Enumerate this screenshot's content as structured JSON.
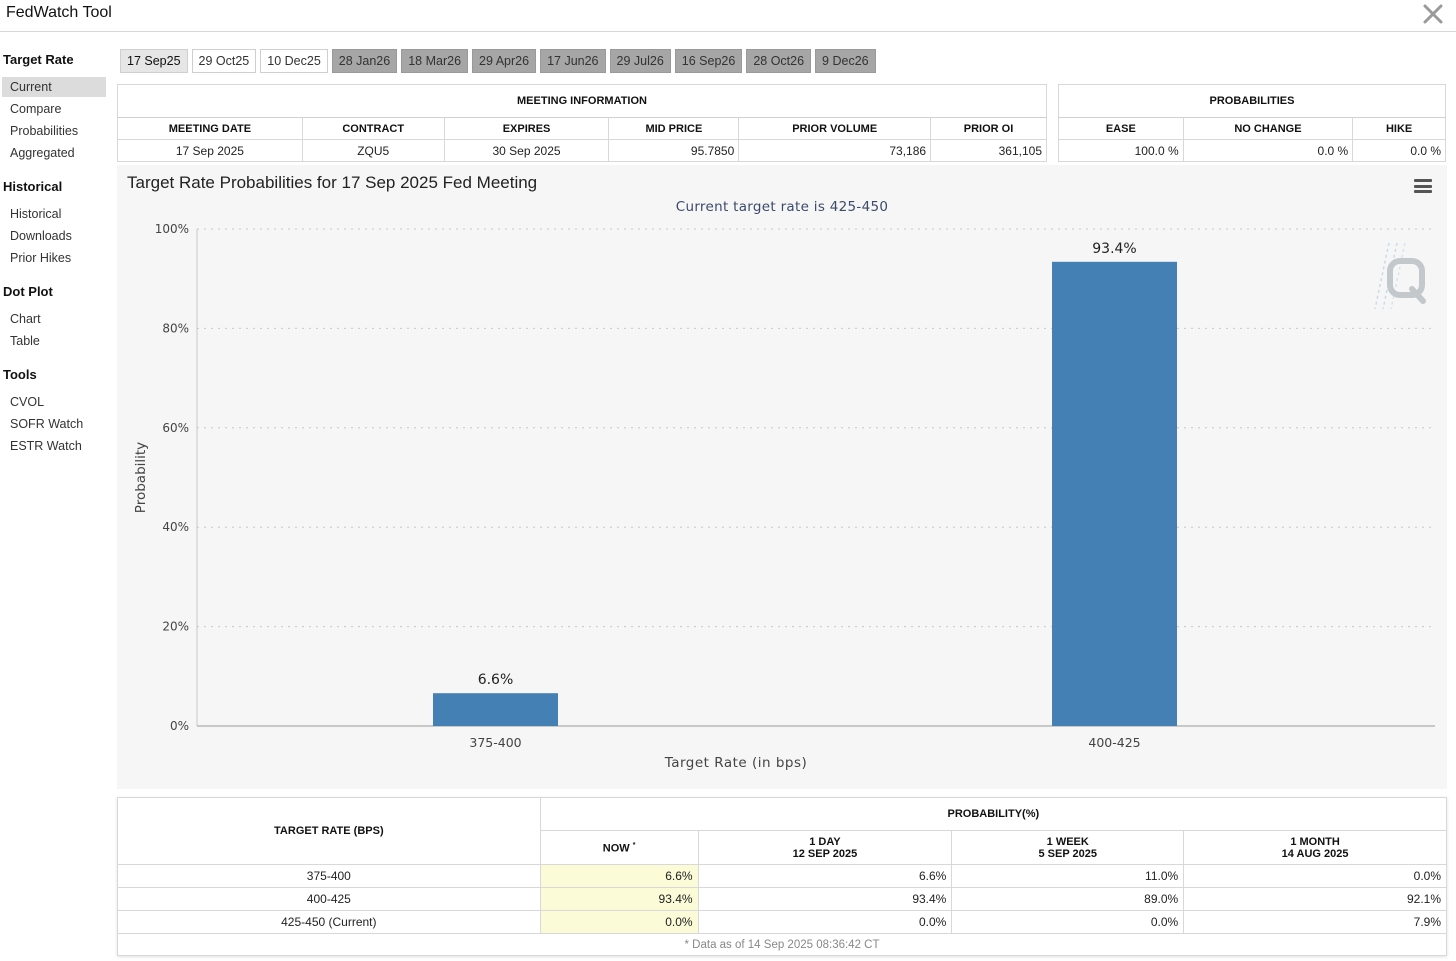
{
  "app": {
    "title": "FedWatch Tool"
  },
  "sidebar": {
    "groups": [
      {
        "label": "Target Rate",
        "items": [
          {
            "label": "Current"
          },
          {
            "label": "Compare"
          },
          {
            "label": "Probabilities"
          },
          {
            "label": "Aggregated"
          }
        ]
      },
      {
        "label": "Historical",
        "items": [
          {
            "label": "Historical"
          },
          {
            "label": "Downloads"
          },
          {
            "label": "Prior Hikes"
          }
        ]
      },
      {
        "label": "Dot Plot",
        "items": [
          {
            "label": "Chart"
          },
          {
            "label": "Table"
          }
        ]
      },
      {
        "label": "Tools",
        "items": [
          {
            "label": "CVOL"
          },
          {
            "label": "SOFR Watch"
          },
          {
            "label": "ESTR Watch"
          }
        ]
      }
    ]
  },
  "tabs": [
    "17 Sep25",
    "29 Oct25",
    "10 Dec25",
    "28 Jan26",
    "18 Mar26",
    "29 Apr26",
    "17 Jun26",
    "29 Jul26",
    "16 Sep26",
    "28 Oct26",
    "9 Dec26"
  ],
  "meeting_info": {
    "header": "MEETING INFORMATION",
    "columns": [
      "MEETING DATE",
      "CONTRACT",
      "EXPIRES",
      "MID PRICE",
      "PRIOR VOLUME",
      "PRIOR OI"
    ],
    "row": [
      "17 Sep 2025",
      "ZQU5",
      "30 Sep 2025",
      "95.7850",
      "73,186",
      "361,105"
    ]
  },
  "probabilities": {
    "header": "PROBABILITIES",
    "columns": [
      "EASE",
      "NO CHANGE",
      "HIKE"
    ],
    "row": [
      "100.0 %",
      "0.0 %",
      "0.0 %"
    ]
  },
  "chart": {
    "title": "Target Rate Probabilities for 17 Sep 2025 Fed Meeting",
    "subtitle": "Current target rate is 425-450"
  },
  "chart_data": {
    "type": "bar",
    "categories": [
      "375-400",
      "400-425"
    ],
    "values": [
      6.6,
      93.4
    ],
    "data_labels": [
      "6.6%",
      "93.4%"
    ],
    "xlabel": "Target Rate (in bps)",
    "ylabel": "Probability",
    "ylim": [
      0,
      100
    ],
    "yticks": [
      "0%",
      "20%",
      "40%",
      "60%",
      "80%",
      "100%"
    ],
    "grid": true,
    "bar_color": "#4580b5"
  },
  "prob_table": {
    "col_header": "TARGET RATE (BPS)",
    "group_header": "PROBABILITY(%)",
    "subheaders": [
      {
        "line1": "NOW",
        "line2": "",
        "mark": "*"
      },
      {
        "line1": "1 DAY",
        "line2": "12 SEP 2025"
      },
      {
        "line1": "1 WEEK",
        "line2": "5 SEP 2025"
      },
      {
        "line1": "1 MONTH",
        "line2": "14 AUG 2025"
      }
    ],
    "rows": [
      [
        "375-400",
        "6.6%",
        "6.6%",
        "11.0%",
        "0.0%"
      ],
      [
        "400-425",
        "93.4%",
        "93.4%",
        "89.0%",
        "92.1%"
      ],
      [
        "425-450 (Current)",
        "0.0%",
        "0.0%",
        "0.0%",
        "7.9%"
      ]
    ],
    "note": "* Data as of 14 Sep 2025 08:36:42 CT"
  },
  "colors": {
    "now_highlight": "#fbfbd8",
    "tab_future": "#a6a6a6",
    "bar": "#4580b5"
  }
}
